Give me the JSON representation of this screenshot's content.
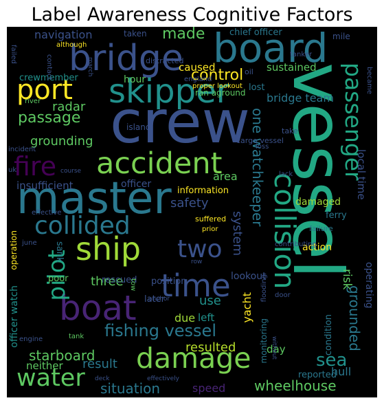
{
  "title": "Label Awareness Cognitive Factors",
  "words": [
    {
      "text": "vessel",
      "color": "#22a884"
    },
    {
      "text": "crew",
      "color": "#3b528b"
    },
    {
      "text": "master",
      "color": "#2a788e"
    },
    {
      "text": "board",
      "color": "#2a788e"
    },
    {
      "text": "bridge",
      "color": "#3b528b"
    },
    {
      "text": "collision",
      "color": "#22a884"
    },
    {
      "text": "skipper",
      "color": "#21918c"
    },
    {
      "text": "accident",
      "color": "#7ad151"
    },
    {
      "text": "damage",
      "color": "#7ad151"
    },
    {
      "text": "ship",
      "color": "#a0da39"
    },
    {
      "text": "boat",
      "color": "#482475"
    },
    {
      "text": "time",
      "color": "#3b528b"
    },
    {
      "text": "port",
      "color": "#fde725"
    },
    {
      "text": "water",
      "color": "#5ec962"
    },
    {
      "text": "collided",
      "color": "#2a788e"
    },
    {
      "text": "fire",
      "color": "#440154"
    },
    {
      "text": "passenger",
      "color": "#22a884"
    },
    {
      "text": "two",
      "color": "#3b528b"
    },
    {
      "text": "pilot",
      "color": "#22a884"
    },
    {
      "text": "fishing vessel",
      "color": "#2a788e"
    },
    {
      "text": "passage",
      "color": "#5ec962"
    },
    {
      "text": "wheelhouse",
      "color": "#5ec962"
    },
    {
      "text": "situation",
      "color": "#2a788e"
    },
    {
      "text": "sea",
      "color": "#21918c"
    },
    {
      "text": "grounding",
      "color": "#5ec962"
    },
    {
      "text": "control",
      "color": "#fde725"
    },
    {
      "text": "made",
      "color": "#5ec962"
    },
    {
      "text": "grounded",
      "color": "#2a788e"
    },
    {
      "text": "starboard",
      "color": "#5ec962"
    },
    {
      "text": "one watchkeeper",
      "color": "#2a788e"
    },
    {
      "text": "resulted",
      "color": "#b5de2b"
    },
    {
      "text": "safety",
      "color": "#3b528b"
    },
    {
      "text": "system",
      "color": "#3b528b"
    },
    {
      "text": "three",
      "color": "#5ec962"
    },
    {
      "text": "result",
      "color": "#2a788e"
    },
    {
      "text": "risk",
      "color": "#5ec962"
    },
    {
      "text": "use",
      "color": "#21918c"
    },
    {
      "text": "radar",
      "color": "#5ec962"
    },
    {
      "text": "area",
      "color": "#5ec962"
    },
    {
      "text": "navigation",
      "color": "#3b528b"
    },
    {
      "text": "yacht",
      "color": "#fde725"
    },
    {
      "text": "bridge team",
      "color": "#2a788e"
    },
    {
      "text": "operating",
      "color": "#3b528b"
    },
    {
      "text": "local time",
      "color": "#3b528b"
    },
    {
      "text": "speed",
      "color": "#482475"
    },
    {
      "text": "neither",
      "color": "#5ec962"
    },
    {
      "text": "sustained",
      "color": "#5ec962"
    },
    {
      "text": "caused",
      "color": "#fde725"
    },
    {
      "text": "due",
      "color": "#a0da39"
    },
    {
      "text": "left",
      "color": "#21918c"
    },
    {
      "text": "insufficient",
      "color": "#3b528b"
    },
    {
      "text": "officer",
      "color": "#3b528b"
    },
    {
      "text": "lookout",
      "color": "#3b528b"
    },
    {
      "text": "day",
      "color": "#5ec962"
    },
    {
      "text": "hour",
      "color": "#5ec962"
    },
    {
      "text": "officer watch",
      "color": "#21918c"
    },
    {
      "text": "crewmember",
      "color": "#21918c"
    },
    {
      "text": "hull",
      "color": "#2a788e"
    },
    {
      "text": "information",
      "color": "#fde725"
    },
    {
      "text": "damaged",
      "color": "#a0da39"
    },
    {
      "text": "action",
      "color": "#fde725"
    },
    {
      "text": "lost",
      "color": "#2a788e"
    },
    {
      "text": "chief officer",
      "color": "#2a788e"
    },
    {
      "text": "sank",
      "color": "#2a788e"
    },
    {
      "text": "monitoring",
      "color": "#2a788e"
    },
    {
      "text": "condition",
      "color": "#2a788e"
    },
    {
      "text": "reported",
      "color": "#2a788e"
    },
    {
      "text": "later",
      "color": "#3b528b"
    },
    {
      "text": "position",
      "color": "#3b528b"
    },
    {
      "text": "poor",
      "color": "#5ec962"
    },
    {
      "text": "rescued",
      "color": "#3b528b"
    },
    {
      "text": "island",
      "color": "#3b528b"
    },
    {
      "text": "ran aground",
      "color": "#5ec962"
    },
    {
      "text": "operation",
      "color": "#fde725"
    },
    {
      "text": "taken",
      "color": "#3b528b"
    },
    {
      "text": "mile",
      "color": "#3b528b"
    },
    {
      "text": "distracted",
      "color": "#3b528b"
    },
    {
      "text": "england",
      "color": "#3b528b"
    },
    {
      "text": "although",
      "color": "#fde725"
    },
    {
      "text": "contact",
      "color": "#3b528b"
    },
    {
      "text": "failed",
      "color": "#3b528b"
    },
    {
      "text": "march",
      "color": "#3b528b"
    },
    {
      "text": "river",
      "color": "#5ec962"
    },
    {
      "text": "proper lookout",
      "color": "#fde725"
    },
    {
      "text": "oil",
      "color": "#3b528b"
    },
    {
      "text": "became",
      "color": "#3b528b"
    },
    {
      "text": "tanker",
      "color": "#3b528b"
    },
    {
      "text": "cargo vessel",
      "color": "#3b528b"
    },
    {
      "text": "take",
      "color": "#3b528b"
    },
    {
      "text": "loss",
      "color": "#3b528b"
    },
    {
      "text": "lack",
      "color": "#3b528b"
    },
    {
      "text": "ferry",
      "color": "#2a788e"
    },
    {
      "text": "failure",
      "color": "#2a788e"
    },
    {
      "text": "contributing",
      "color": "#3b528b"
    },
    {
      "text": "flooding",
      "color": "#3b528b"
    },
    {
      "text": "effective",
      "color": "#3b528b"
    },
    {
      "text": "suffered",
      "color": "#fde725"
    },
    {
      "text": "prior",
      "color": "#fde725"
    },
    {
      "text": "june",
      "color": "#3b528b"
    },
    {
      "text": "tow",
      "color": "#5ec962"
    },
    {
      "text": "anchor",
      "color": "#3b528b"
    },
    {
      "text": "tank",
      "color": "#5ec962"
    },
    {
      "text": "engine",
      "color": "#3b528b"
    },
    {
      "text": "deck",
      "color": "#3b528b"
    },
    {
      "text": "effectively",
      "color": "#3b528b"
    },
    {
      "text": "without",
      "color": "#3b528b"
    },
    {
      "text": "door",
      "color": "#3b528b"
    },
    {
      "text": "uk",
      "color": "#3b528b"
    },
    {
      "text": "course",
      "color": "#3b528b"
    },
    {
      "text": "incident",
      "color": "#3b528b"
    },
    {
      "text": "row",
      "color": "#3b528b"
    }
  ]
}
